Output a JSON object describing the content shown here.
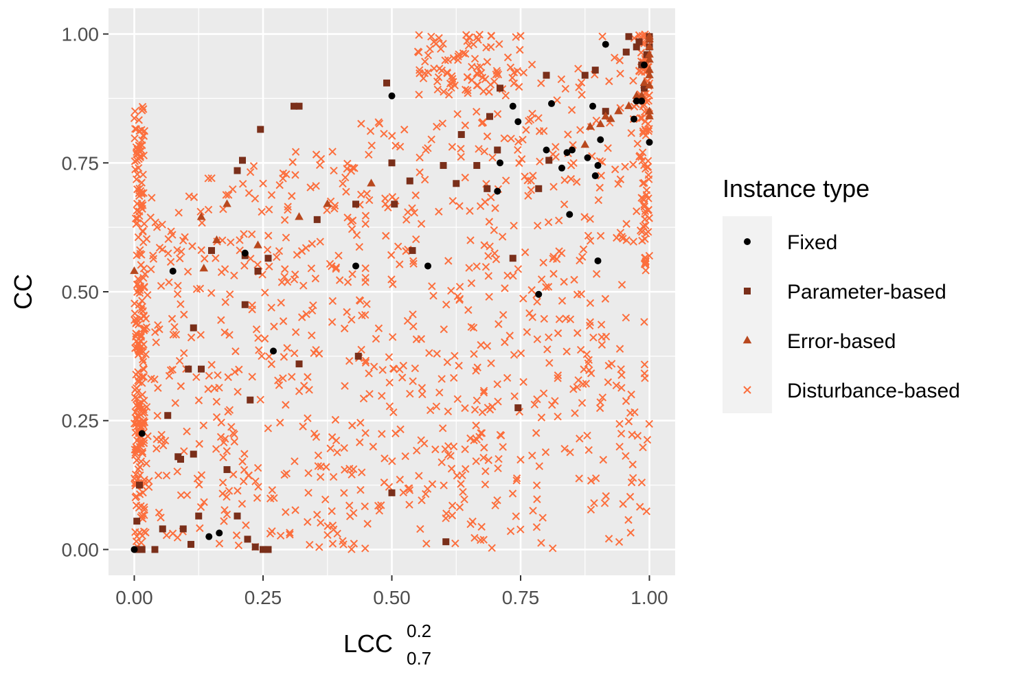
{
  "chart_data": {
    "type": "scatter",
    "xlabel": {
      "base": "LCC",
      "sup": "0.2",
      "sub": "0.7"
    },
    "ylabel": "CC",
    "xlim": [
      -0.05,
      1.05
    ],
    "ylim": [
      -0.05,
      1.05
    ],
    "x_ticks": [
      "0.00",
      "0.25",
      "0.50",
      "0.75",
      "1.00"
    ],
    "y_ticks": [
      "0.00",
      "0.25",
      "0.50",
      "0.75",
      "1.00"
    ],
    "grid": true,
    "legend": {
      "title": "Instance type",
      "position": "right",
      "entries": [
        {
          "name": "Fixed",
          "shape": "circle",
          "color": "#000000"
        },
        {
          "name": "Parameter-based",
          "shape": "square",
          "color": "#7a2f1a"
        },
        {
          "name": "Error-based",
          "shape": "triangle",
          "color": "#b8481e"
        },
        {
          "name": "Disturbance-based",
          "shape": "cross",
          "color": "#fc6e3c"
        }
      ]
    },
    "series": [
      {
        "name": "Fixed",
        "points": [
          [
            0.0,
            0.0
          ],
          [
            0.015,
            0.225
          ],
          [
            0.075,
            0.54
          ],
          [
            0.145,
            0.025
          ],
          [
            0.165,
            0.032
          ],
          [
            0.215,
            0.575
          ],
          [
            0.27,
            0.385
          ],
          [
            0.43,
            0.55
          ],
          [
            0.5,
            0.88
          ],
          [
            0.57,
            0.55
          ],
          [
            0.705,
            0.695
          ],
          [
            0.71,
            0.75
          ],
          [
            0.735,
            0.86
          ],
          [
            0.745,
            0.83
          ],
          [
            0.785,
            0.495
          ],
          [
            0.8,
            0.775
          ],
          [
            0.81,
            0.865
          ],
          [
            0.83,
            0.74
          ],
          [
            0.84,
            0.77
          ],
          [
            0.845,
            0.65
          ],
          [
            0.85,
            0.775
          ],
          [
            0.88,
            0.76
          ],
          [
            0.89,
            0.86
          ],
          [
            0.895,
            0.725
          ],
          [
            0.9,
            0.745
          ],
          [
            0.9,
            0.56
          ],
          [
            0.905,
            0.795
          ],
          [
            0.915,
            0.98
          ],
          [
            0.97,
            0.835
          ],
          [
            0.975,
            0.87
          ],
          [
            0.985,
            0.87
          ],
          [
            0.99,
            0.94
          ],
          [
            1.0,
            0.79
          ]
        ]
      },
      {
        "name": "Parameter-based",
        "points": [
          [
            0.005,
            0.0
          ],
          [
            0.005,
            0.055
          ],
          [
            0.01,
            0.125
          ],
          [
            0.015,
            0.0
          ],
          [
            0.04,
            0.0
          ],
          [
            0.055,
            0.04
          ],
          [
            0.065,
            0.26
          ],
          [
            0.085,
            0.18
          ],
          [
            0.09,
            0.175
          ],
          [
            0.095,
            0.04
          ],
          [
            0.105,
            0.35
          ],
          [
            0.11,
            0.01
          ],
          [
            0.115,
            0.43
          ],
          [
            0.115,
            0.185
          ],
          [
            0.125,
            0.065
          ],
          [
            0.13,
            0.35
          ],
          [
            0.15,
            0.58
          ],
          [
            0.18,
            0.155
          ],
          [
            0.2,
            0.065
          ],
          [
            0.2,
            0.735
          ],
          [
            0.21,
            0.755
          ],
          [
            0.215,
            0.475
          ],
          [
            0.215,
            0.57
          ],
          [
            0.22,
            0.02
          ],
          [
            0.225,
            0.29
          ],
          [
            0.235,
            0.005
          ],
          [
            0.24,
            0.54
          ],
          [
            0.245,
            0.815
          ],
          [
            0.25,
            0.0
          ],
          [
            0.26,
            0.565
          ],
          [
            0.26,
            0.0
          ],
          [
            0.31,
            0.86
          ],
          [
            0.32,
            0.86
          ],
          [
            0.32,
            0.36
          ],
          [
            0.355,
            0.64
          ],
          [
            0.43,
            0.67
          ],
          [
            0.435,
            0.375
          ],
          [
            0.49,
            0.905
          ],
          [
            0.5,
            0.75
          ],
          [
            0.5,
            0.11
          ],
          [
            0.505,
            0.67
          ],
          [
            0.535,
            0.715
          ],
          [
            0.54,
            0.58
          ],
          [
            0.6,
            0.745
          ],
          [
            0.605,
            0.015
          ],
          [
            0.625,
            0.71
          ],
          [
            0.635,
            0.805
          ],
          [
            0.665,
            0.745
          ],
          [
            0.685,
            0.7
          ],
          [
            0.69,
            0.84
          ],
          [
            0.705,
            0.775
          ],
          [
            0.71,
            0.895
          ],
          [
            0.735,
            0.565
          ],
          [
            0.745,
            0.275
          ],
          [
            0.785,
            0.7
          ],
          [
            0.8,
            0.92
          ],
          [
            0.805,
            0.755
          ],
          [
            0.875,
            0.92
          ],
          [
            0.895,
            0.93
          ],
          [
            0.915,
            0.85
          ],
          [
            0.955,
            0.965
          ],
          [
            0.96,
            0.995
          ],
          [
            0.975,
            0.975
          ],
          [
            0.98,
            0.985
          ],
          [
            0.985,
            0.94
          ],
          [
            0.99,
            0.895
          ],
          [
            0.995,
            0.96
          ],
          [
            1.0,
            0.975
          ],
          [
            1.0,
            0.995
          ],
          [
            1.0,
            0.99
          ]
        ]
      },
      {
        "name": "Error-based",
        "points": [
          [
            0.0,
            0.54
          ],
          [
            0.13,
            0.645
          ],
          [
            0.135,
            0.545
          ],
          [
            0.16,
            0.6
          ],
          [
            0.18,
            0.67
          ],
          [
            0.24,
            0.59
          ],
          [
            0.32,
            0.645
          ],
          [
            0.375,
            0.67
          ],
          [
            0.46,
            0.71
          ],
          [
            0.875,
            0.785
          ],
          [
            0.885,
            0.82
          ],
          [
            0.905,
            0.825
          ],
          [
            0.915,
            0.84
          ],
          [
            0.925,
            0.835
          ],
          [
            0.94,
            0.85
          ],
          [
            0.96,
            0.86
          ],
          [
            0.975,
            0.88
          ],
          [
            0.98,
            0.87
          ],
          [
            0.985,
            0.88
          ],
          [
            0.99,
            0.905
          ],
          [
            1.0,
            0.93
          ],
          [
            1.0,
            0.96
          ],
          [
            1.0,
            0.85
          ],
          [
            1.0,
            0.84
          ],
          [
            1.0,
            0.995
          ],
          [
            1.0,
            0.99
          ],
          [
            1.0,
            0.975
          ],
          [
            1.0,
            0.95
          ],
          [
            1.0,
            0.92
          ],
          [
            1.0,
            0.9
          ]
        ]
      },
      {
        "name": "Disturbance-based",
        "generated": true,
        "count": 1500
      }
    ]
  }
}
